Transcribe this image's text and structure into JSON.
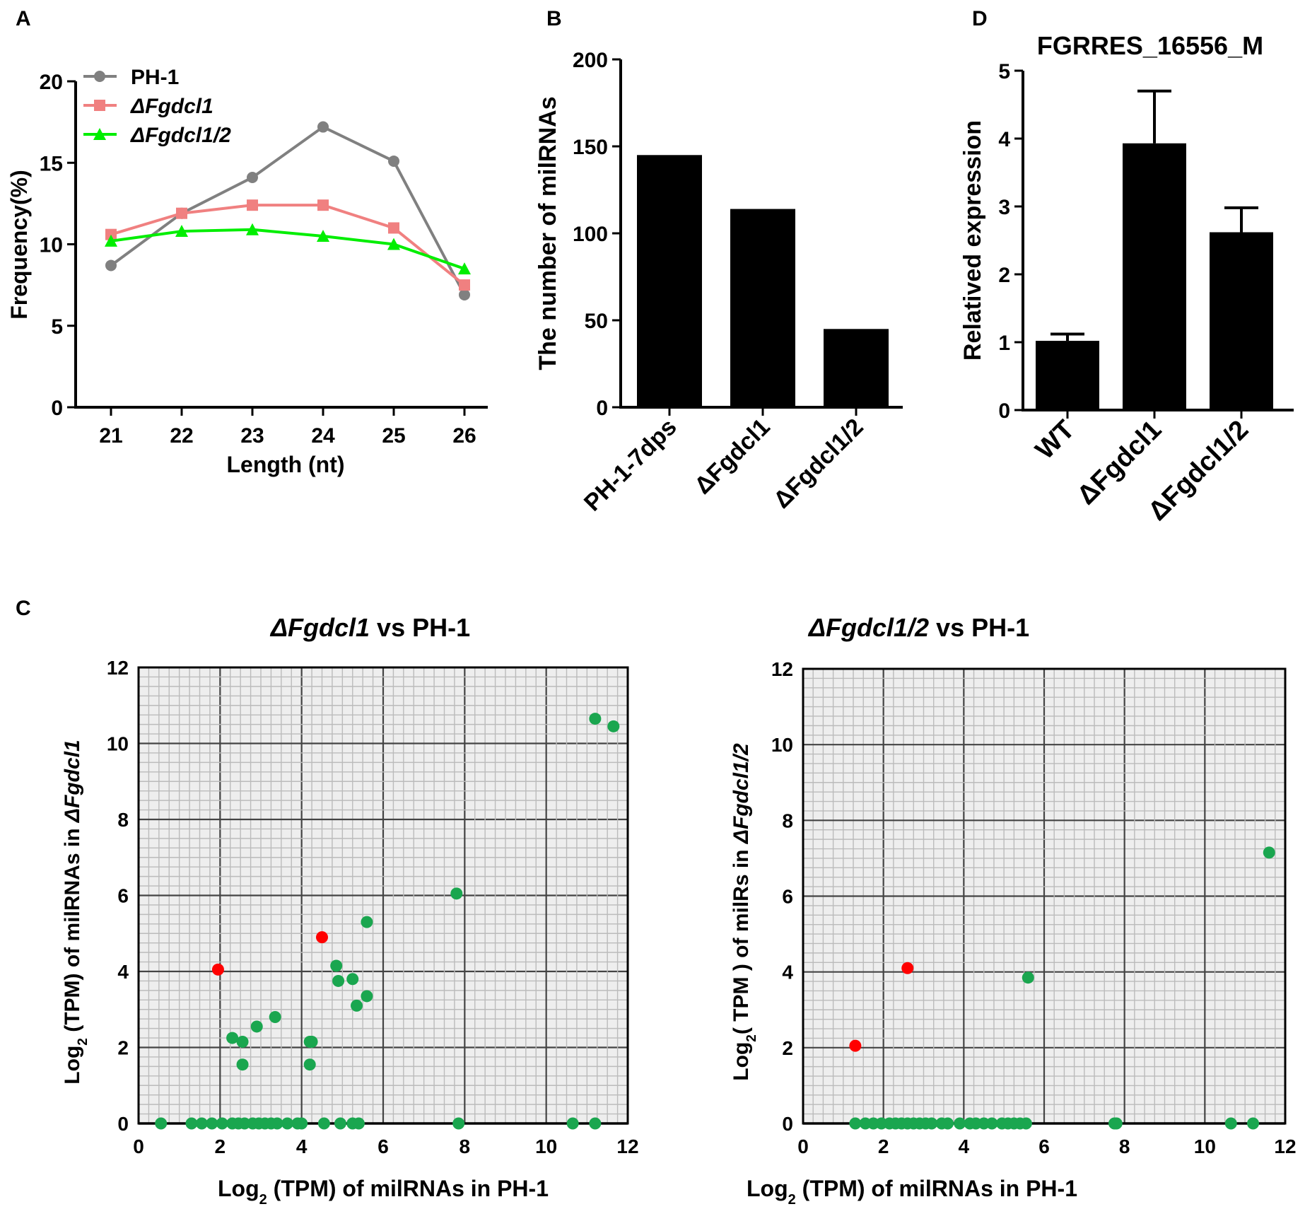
{
  "panel_labels": {
    "a": "A",
    "b": "B",
    "c": "C",
    "d": "D"
  },
  "colors": {
    "ph1": "#808080",
    "fgdcl1": "#f08080",
    "fgdcl12": "#00ee00",
    "bar": "#000000",
    "scatter_green": "#1aa64f",
    "scatter_red": "#ff0000",
    "grid_minor": "#bbbbbb",
    "grid_major": "#444444",
    "plot_bg": "#eeeeee"
  },
  "chart_data": [
    {
      "id": "A",
      "type": "line",
      "title": "",
      "xlabel": "Length (nt)",
      "ylabel": "Frequency(%)",
      "x": [
        21,
        22,
        23,
        24,
        25,
        26
      ],
      "ylim": [
        0,
        20
      ],
      "yticks": [
        "0",
        "5",
        "10",
        "15",
        "20"
      ],
      "xticks": [
        "21",
        "22",
        "23",
        "24",
        "25",
        "26"
      ],
      "legend_position": "top-left",
      "series": [
        {
          "name": "PH-1",
          "marker": "circle",
          "color": "#808080",
          "values": [
            8.7,
            11.9,
            14.1,
            17.2,
            15.1,
            6.9
          ]
        },
        {
          "name": "ΔFgdcl1",
          "marker": "square",
          "color": "#f08080",
          "values": [
            10.6,
            11.9,
            12.4,
            12.4,
            11.0,
            7.5
          ]
        },
        {
          "name": "ΔFgdcl1/2",
          "marker": "triangle",
          "color": "#00ee00",
          "values": [
            10.2,
            10.8,
            10.9,
            10.5,
            10.0,
            8.5
          ]
        }
      ]
    },
    {
      "id": "B",
      "type": "bar",
      "title": "",
      "xlabel": "",
      "ylabel": "The number of milRNAs",
      "categories": [
        "PH-1-7dps",
        "ΔFgdcl1",
        "ΔFgdcl1/2"
      ],
      "values": [
        145,
        114,
        45
      ],
      "ylim": [
        0,
        200
      ],
      "yticks": [
        "0",
        "50",
        "100",
        "150",
        "200"
      ]
    },
    {
      "id": "D",
      "type": "bar",
      "title": "FGRRES_16556_M",
      "xlabel": "",
      "ylabel": "Relatived expression",
      "categories": [
        "WT",
        "ΔFgdcl1",
        "ΔFgdcl1/2"
      ],
      "values": [
        1.02,
        3.93,
        2.62
      ],
      "errors": [
        0.1,
        0.77,
        0.36
      ],
      "ylim": [
        0,
        5
      ],
      "yticks": [
        "0",
        "1",
        "2",
        "3",
        "4",
        "5"
      ]
    },
    {
      "id": "C1",
      "type": "scatter",
      "title_italic": "ΔFgdcl1",
      "title_rest": " vs PH-1",
      "xlabel": "Log2 (TPM) of milRNAs in PH-1",
      "ylabel_prefix": "Log2 (TPM) of milRNAs in ",
      "ylabel_italic": "ΔFgdcl1",
      "xlim": [
        0,
        12
      ],
      "ylim": [
        0,
        12
      ],
      "xticks": [
        "0",
        "2",
        "4",
        "6",
        "8",
        "10",
        "12"
      ],
      "yticks": [
        "0",
        "2",
        "4",
        "6",
        "8",
        "10",
        "12"
      ],
      "green_points": [
        [
          0.55,
          0
        ],
        [
          1.3,
          0
        ],
        [
          1.55,
          0
        ],
        [
          1.8,
          0
        ],
        [
          2.05,
          0
        ],
        [
          2.3,
          0
        ],
        [
          2.45,
          0
        ],
        [
          2.6,
          0
        ],
        [
          2.8,
          0
        ],
        [
          2.95,
          0
        ],
        [
          3.1,
          0
        ],
        [
          3.25,
          0
        ],
        [
          3.4,
          0
        ],
        [
          3.65,
          0
        ],
        [
          3.9,
          0
        ],
        [
          4.0,
          0
        ],
        [
          4.55,
          0
        ],
        [
          4.95,
          0
        ],
        [
          5.25,
          0
        ],
        [
          5.4,
          0
        ],
        [
          7.85,
          0
        ],
        [
          10.65,
          0
        ],
        [
          11.2,
          0
        ],
        [
          2.3,
          2.25
        ],
        [
          2.55,
          2.15
        ],
        [
          2.55,
          1.55
        ],
        [
          2.9,
          2.55
        ],
        [
          3.35,
          2.8
        ],
        [
          4.2,
          2.15
        ],
        [
          4.25,
          2.15
        ],
        [
          4.2,
          1.55
        ],
        [
          4.85,
          4.15
        ],
        [
          4.9,
          3.75
        ],
        [
          5.25,
          3.8
        ],
        [
          5.35,
          3.1
        ],
        [
          5.6,
          5.3
        ],
        [
          5.6,
          3.35
        ],
        [
          7.8,
          6.05
        ],
        [
          11.2,
          10.65
        ],
        [
          11.65,
          10.45
        ]
      ],
      "red_points": [
        [
          1.95,
          4.05
        ],
        [
          4.5,
          4.9
        ]
      ]
    },
    {
      "id": "C2",
      "type": "scatter",
      "title_italic": "ΔFgdcl1/2",
      "title_rest": " vs PH-1",
      "xlabel": "Log2 (TPM) of milRNAs in PH-1",
      "ylabel_prefix": "Log2( TPM ) of milRs in ",
      "ylabel_italic": "ΔFgdcl1/2",
      "xlim": [
        0,
        12
      ],
      "ylim": [
        0,
        12
      ],
      "xticks": [
        "0",
        "2",
        "4",
        "6",
        "8",
        "10",
        "12"
      ],
      "yticks": [
        "0",
        "2",
        "4",
        "6",
        "8",
        "10",
        "12"
      ],
      "green_points": [
        [
          1.3,
          0
        ],
        [
          1.55,
          0
        ],
        [
          1.75,
          0
        ],
        [
          1.95,
          0
        ],
        [
          2.15,
          0
        ],
        [
          2.3,
          0
        ],
        [
          2.45,
          0
        ],
        [
          2.6,
          0
        ],
        [
          2.75,
          0
        ],
        [
          2.9,
          0
        ],
        [
          3.05,
          0
        ],
        [
          3.2,
          0
        ],
        [
          3.45,
          0
        ],
        [
          3.6,
          0
        ],
        [
          3.9,
          0
        ],
        [
          4.15,
          0
        ],
        [
          4.3,
          0
        ],
        [
          4.5,
          0
        ],
        [
          4.7,
          0
        ],
        [
          4.95,
          0
        ],
        [
          5.1,
          0
        ],
        [
          5.25,
          0
        ],
        [
          5.4,
          0
        ],
        [
          5.55,
          0
        ],
        [
          7.75,
          0
        ],
        [
          7.8,
          0
        ],
        [
          10.65,
          0
        ],
        [
          11.2,
          0
        ],
        [
          5.6,
          3.85
        ],
        [
          11.6,
          7.15
        ]
      ],
      "red_points": [
        [
          1.3,
          2.05
        ],
        [
          2.6,
          4.1
        ]
      ]
    }
  ]
}
